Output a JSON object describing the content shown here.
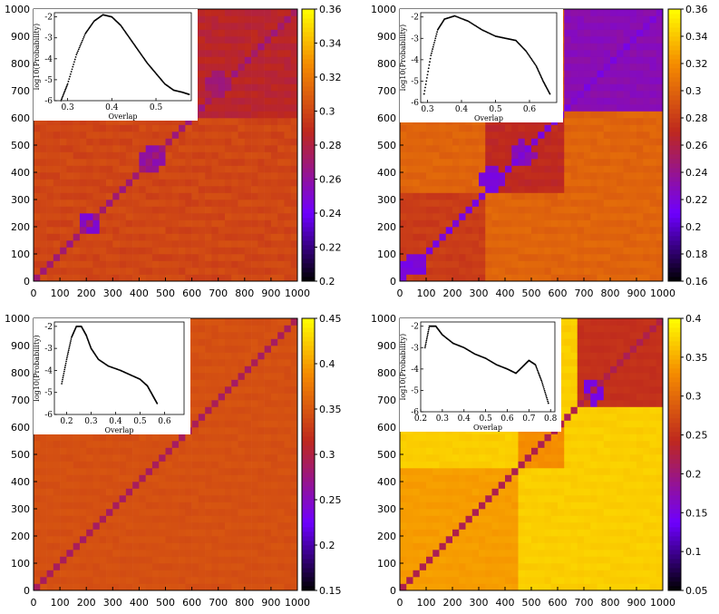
{
  "chart_data": [
    {
      "type": "heatmap",
      "axis_ticks": [
        "0",
        "100",
        "200",
        "300",
        "400",
        "500",
        "600",
        "700",
        "800",
        "900",
        "1000"
      ],
      "xlim": [
        0,
        1000
      ],
      "ylim": [
        0,
        1000
      ],
      "colorbar": {
        "range": [
          0.2,
          0.36
        ],
        "ticks": [
          "0.2",
          "0.22",
          "0.24",
          "0.26",
          "0.28",
          "0.3",
          "0.32",
          "0.34",
          "0.36"
        ]
      },
      "background_value": 0.3,
      "diagonal_value": 0.27,
      "blocks": [
        {
          "from": 600,
          "to": 1000,
          "value": 0.285
        }
      ],
      "patches": [
        {
          "x": 210,
          "y": 215,
          "value": 0.25
        },
        {
          "x": 450,
          "y": 450,
          "value": 0.26
        },
        {
          "x": 700,
          "y": 720,
          "value": 0.27
        }
      ],
      "inset": {
        "type": "scatter",
        "xlabel": "Overlap",
        "ylabel": "log10(Probability)",
        "xlim": [
          0.27,
          0.58
        ],
        "ylim": [
          -6,
          -1.8
        ],
        "xticks": [
          "0.3",
          "0.4",
          "0.5"
        ],
        "yticks": [
          "-2",
          "-3",
          "-4",
          "-5",
          "-6"
        ],
        "curve": [
          [
            0.285,
            -6
          ],
          [
            0.3,
            -5.2
          ],
          [
            0.32,
            -3.8
          ],
          [
            0.34,
            -2.8
          ],
          [
            0.36,
            -2.2
          ],
          [
            0.38,
            -1.9
          ],
          [
            0.4,
            -2.0
          ],
          [
            0.42,
            -2.4
          ],
          [
            0.44,
            -3.0
          ],
          [
            0.46,
            -3.6
          ],
          [
            0.48,
            -4.2
          ],
          [
            0.5,
            -4.7
          ],
          [
            0.52,
            -5.2
          ],
          [
            0.54,
            -5.5
          ],
          [
            0.56,
            -5.6
          ],
          [
            0.575,
            -5.7
          ]
        ]
      }
    },
    {
      "type": "heatmap",
      "axis_ticks": [
        "0",
        "100",
        "200",
        "300",
        "400",
        "500",
        "600",
        "700",
        "800",
        "900",
        "1000"
      ],
      "xlim": [
        0,
        1000
      ],
      "ylim": [
        0,
        1000
      ],
      "colorbar": {
        "range": [
          0.16,
          0.36
        ],
        "ticks": [
          "0.16",
          "0.18",
          "0.2",
          "0.22",
          "0.24",
          "0.26",
          "0.28",
          "0.3",
          "0.32",
          "0.34",
          "0.36"
        ]
      },
      "background_value": 0.3,
      "diagonal_value": 0.22,
      "blocks": [
        {
          "from": 620,
          "to": 1000,
          "value": 0.23
        },
        {
          "from": 320,
          "to": 620,
          "value": 0.27
        },
        {
          "from": 0,
          "to": 320,
          "value": 0.28
        }
      ],
      "patches": [
        {
          "x": 350,
          "y": 380,
          "value": 0.22
        },
        {
          "x": 470,
          "y": 470,
          "value": 0.23
        },
        {
          "x": 50,
          "y": 60,
          "value": 0.22
        }
      ],
      "inset": {
        "type": "scatter",
        "xlabel": "Overlap",
        "ylabel": "log10(Probability)",
        "xlim": [
          0.28,
          0.68
        ],
        "ylim": [
          -6,
          -1.8
        ],
        "xticks": [
          "0.3",
          "0.4",
          "0.5",
          "0.6"
        ],
        "yticks": [
          "-2",
          "-3",
          "-4",
          "-5",
          "-6"
        ],
        "curve": [
          [
            0.29,
            -5.6
          ],
          [
            0.31,
            -3.8
          ],
          [
            0.33,
            -2.6
          ],
          [
            0.35,
            -2.1
          ],
          [
            0.38,
            -1.95
          ],
          [
            0.42,
            -2.2
          ],
          [
            0.46,
            -2.6
          ],
          [
            0.5,
            -2.9
          ],
          [
            0.53,
            -3.0
          ],
          [
            0.56,
            -3.1
          ],
          [
            0.59,
            -3.6
          ],
          [
            0.62,
            -4.3
          ],
          [
            0.64,
            -5.0
          ],
          [
            0.66,
            -5.6
          ]
        ]
      }
    },
    {
      "type": "heatmap",
      "axis_ticks": [
        "0",
        "100",
        "200",
        "300",
        "400",
        "500",
        "600",
        "700",
        "800",
        "900",
        "1000"
      ],
      "xlim": [
        0,
        1000
      ],
      "ylim": [
        0,
        1000
      ],
      "colorbar": {
        "range": [
          0.15,
          0.45
        ],
        "ticks": [
          "0.15",
          "0.2",
          "0.25",
          "0.3",
          "0.35",
          "0.4",
          "0.45"
        ]
      },
      "background_value": 0.345,
      "diagonal_value": 0.29,
      "blocks": [],
      "patches": [],
      "inset": {
        "type": "scatter",
        "xlabel": "Overlap",
        "ylabel": "log10(Probability)",
        "xlim": [
          0.15,
          0.68
        ],
        "ylim": [
          -6,
          -1.8
        ],
        "xticks": [
          "0.2",
          "0.3",
          "0.4",
          "0.5",
          "0.6"
        ],
        "yticks": [
          "-2",
          "-3",
          "-4",
          "-5",
          "-6"
        ],
        "curve": [
          [
            0.18,
            -4.6
          ],
          [
            0.2,
            -3.5
          ],
          [
            0.22,
            -2.5
          ],
          [
            0.24,
            -2.0
          ],
          [
            0.26,
            -2.0
          ],
          [
            0.28,
            -2.4
          ],
          [
            0.3,
            -3.0
          ],
          [
            0.33,
            -3.5
          ],
          [
            0.37,
            -3.8
          ],
          [
            0.42,
            -4.0
          ],
          [
            0.46,
            -4.2
          ],
          [
            0.5,
            -4.4
          ],
          [
            0.53,
            -4.7
          ],
          [
            0.55,
            -5.1
          ],
          [
            0.57,
            -5.5
          ]
        ]
      }
    },
    {
      "type": "heatmap",
      "axis_ticks": [
        "0",
        "100",
        "200",
        "300",
        "400",
        "500",
        "600",
        "700",
        "800",
        "900",
        "1000"
      ],
      "xlim": [
        0,
        1000
      ],
      "ylim": [
        0,
        1000
      ],
      "colorbar": {
        "range": [
          0.05,
          0.4
        ],
        "ticks": [
          "0.05",
          "0.1",
          "0.15",
          "0.2",
          "0.25",
          "0.3",
          "0.35",
          "0.4"
        ]
      },
      "background_value": 0.37,
      "diagonal_value": 0.22,
      "blocks": [
        {
          "from": 680,
          "to": 1000,
          "value": 0.25
        },
        {
          "from": 450,
          "to": 620,
          "value": 0.33
        },
        {
          "from": 0,
          "to": 450,
          "value": 0.34
        }
      ],
      "patches": [
        {
          "x": 740,
          "y": 730,
          "value": 0.15
        }
      ],
      "inset": {
        "type": "scatter",
        "xlabel": "Overlap",
        "ylabel": "log10(Probability)",
        "xlim": [
          0.2,
          0.82
        ],
        "ylim": [
          -6,
          -1.8
        ],
        "xticks": [
          "0.2",
          "0.3",
          "0.4",
          "0.5",
          "0.6",
          "0.7",
          "0.8"
        ],
        "yticks": [
          "-2",
          "-3",
          "-4",
          "-5",
          "-6"
        ],
        "curve": [
          [
            0.22,
            -3.0
          ],
          [
            0.24,
            -2.0
          ],
          [
            0.27,
            -2.0
          ],
          [
            0.3,
            -2.4
          ],
          [
            0.35,
            -2.8
          ],
          [
            0.4,
            -3.0
          ],
          [
            0.45,
            -3.3
          ],
          [
            0.5,
            -3.5
          ],
          [
            0.55,
            -3.8
          ],
          [
            0.6,
            -4.0
          ],
          [
            0.64,
            -4.2
          ],
          [
            0.67,
            -3.9
          ],
          [
            0.7,
            -3.6
          ],
          [
            0.73,
            -3.8
          ],
          [
            0.76,
            -4.6
          ],
          [
            0.79,
            -5.6
          ]
        ]
      }
    }
  ]
}
